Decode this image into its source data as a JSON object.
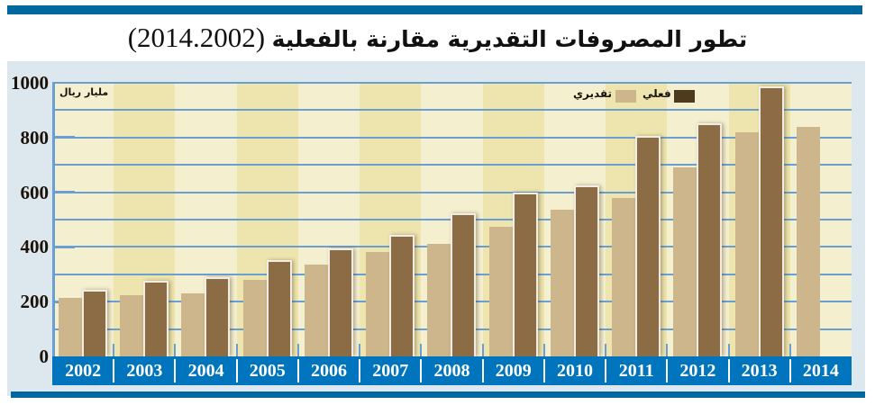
{
  "header": {
    "title_ar": "تطور المصروفات التقديرية مقارنة بالفعلية",
    "title_years": "(2014.2002)"
  },
  "colors": {
    "brand_blue": "#00679f",
    "axis_band": "#0074bc",
    "gridline": "#6a9fd4",
    "panel_bg": "#dde7ee",
    "stripe_light": "#f4efcf",
    "stripe_dark": "#ede5ad",
    "estimated": "#cdb68c",
    "actual": "#8b6c44",
    "legend_actual": "#4e3a1c"
  },
  "legend": {
    "actual_label": "فعلي",
    "estimated_label": "تقديري"
  },
  "unit_label": "مليار ريال",
  "chart_data": {
    "type": "bar",
    "title": "تطور المصروفات التقديرية مقارنة بالفعلية (2014.2002)",
    "xlabel": "",
    "ylabel": "مليار ريال",
    "ylim": [
      0,
      1000
    ],
    "yticks": [
      0,
      200,
      400,
      600,
      800,
      1000
    ],
    "grid": true,
    "grid_step": 100,
    "legend_position": "top-right",
    "categories": [
      "2002",
      "2003",
      "2004",
      "2005",
      "2006",
      "2007",
      "2008",
      "2009",
      "2010",
      "2011",
      "2012",
      "2013",
      "2014"
    ],
    "series": [
      {
        "name": "تقديري",
        "values": [
          213,
          223,
          230,
          279,
          334,
          380,
          410,
          475,
          535,
          580,
          690,
          820,
          839
        ]
      },
      {
        "name": "فعلي",
        "values": [
          236,
          269,
          282,
          344,
          387,
          439,
          518,
          593,
          620,
          800,
          846,
          980,
          null
        ]
      }
    ]
  }
}
